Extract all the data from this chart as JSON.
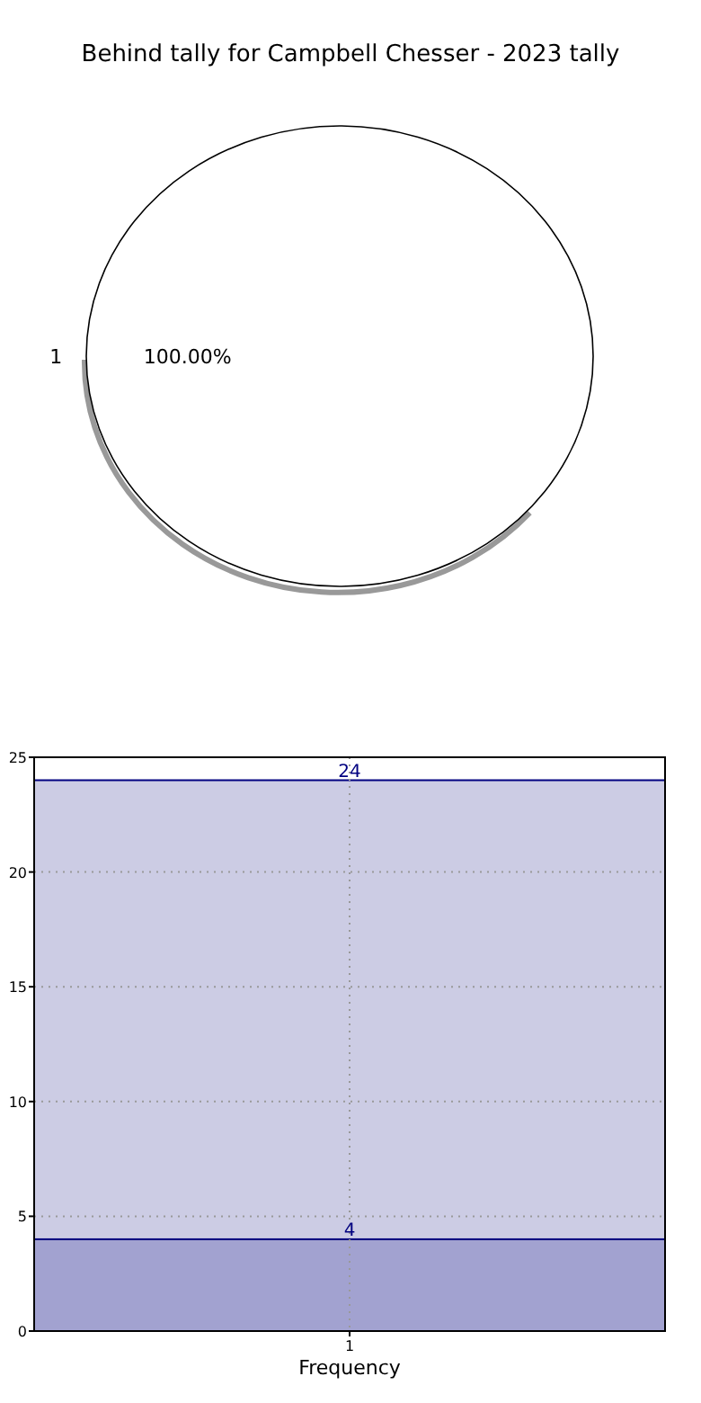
{
  "chart_data": [
    {
      "type": "pie",
      "title": "Behind tally for Campbell Chesser - 2023 tally",
      "categories": [
        "1"
      ],
      "values": [
        100
      ],
      "colors": [
        "#ffffff"
      ],
      "value_labels": [
        "100.00%"
      ]
    },
    {
      "type": "bar",
      "xlabel": "Frequency",
      "categories": [
        "1"
      ],
      "ylim": [
        0,
        25
      ],
      "yticks": [
        0,
        5,
        10,
        15,
        20,
        25
      ],
      "grid": true,
      "stacked": true,
      "totals": [
        "24"
      ],
      "series": [
        {
          "color": "#a2a2d0",
          "values": [
            4
          ],
          "value_labels": [
            "4"
          ]
        },
        {
          "color": "#cccce4",
          "values": [
            20
          ],
          "value_labels": [
            null
          ]
        }
      ]
    }
  ]
}
